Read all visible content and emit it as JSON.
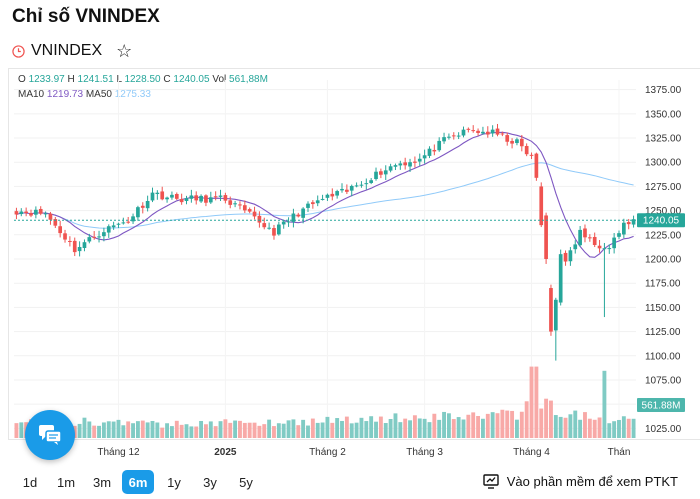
{
  "header": {
    "title": "Chỉ số VNINDEX"
  },
  "symbol": {
    "name": "VNINDEX",
    "clock_icon": "clock-icon",
    "star_icon": "star-icon"
  },
  "legend": {
    "o_label": "O",
    "o_value": "1233.97",
    "h_label": "H",
    "h_value": "1241.51",
    "l_label": "L",
    "l_value": "1228.50",
    "c_label": "C",
    "c_value": "1240.05",
    "vol_label": "Vol",
    "vol_value": "561,88M",
    "ma10_label": "MA10",
    "ma10_value": "1219.73",
    "ma50_label": "MA50",
    "ma50_value": "1275.33"
  },
  "ranges": [
    {
      "label": "1d",
      "active": false
    },
    {
      "label": "1m",
      "active": false
    },
    {
      "label": "3m",
      "active": false
    },
    {
      "label": "6m",
      "active": true
    },
    {
      "label": "1y",
      "active": false
    },
    {
      "label": "3y",
      "active": false
    },
    {
      "label": "5y",
      "active": false
    }
  ],
  "ptkt": {
    "label": "Vào phần mềm để xem PTKT",
    "icon": "chart-window-icon"
  },
  "colors": {
    "up": "#26a69a",
    "down": "#ef5350",
    "ma10": "#7e57c2",
    "ma50": "#90caf9",
    "accent": "#1a9be8"
  },
  "chart_data": {
    "type": "candlestick",
    "y_ticks": [
      1375,
      1350,
      1325,
      1300,
      1275,
      1250,
      1225,
      1200,
      1175,
      1150,
      1125,
      1100,
      1075,
      1050,
      1025
    ],
    "y_tick_labels": [
      "1375.00",
      "1350.00",
      "1325.00",
      "1300.00",
      "1275.00",
      "1250.00",
      "1225.00",
      "1200.00",
      "1175.00",
      "1150.00",
      "1125.00",
      "1100.00",
      "1075.00",
      "1050.00",
      "1025.00"
    ],
    "ylim": [
      1015,
      1385
    ],
    "x_labels": [
      {
        "label": "Tháng 12",
        "index": 21,
        "bold": false
      },
      {
        "label": "2025",
        "index": 43,
        "bold": true
      },
      {
        "label": "Tháng 2",
        "index": 64,
        "bold": false
      },
      {
        "label": "Tháng 3",
        "index": 84,
        "bold": false
      },
      {
        "label": "Tháng 4",
        "index": 106,
        "bold": false
      },
      {
        "label": "Thán",
        "index": 124,
        "bold": false
      }
    ],
    "last_price": "1240.05",
    "last_price_value": 1240.05,
    "last_volume": "561.88M",
    "close_points": [
      [
        0,
        1250
      ],
      [
        6,
        1247
      ],
      [
        12,
        1210
      ],
      [
        18,
        1230
      ],
      [
        23,
        1240
      ],
      [
        28,
        1268
      ],
      [
        33,
        1262
      ],
      [
        38,
        1262
      ],
      [
        43,
        1262
      ],
      [
        48,
        1245
      ],
      [
        53,
        1228
      ],
      [
        58,
        1248
      ],
      [
        63,
        1262
      ],
      [
        68,
        1270
      ],
      [
        73,
        1285
      ],
      [
        78,
        1298
      ],
      [
        83,
        1303
      ],
      [
        88,
        1322
      ],
      [
        93,
        1333
      ],
      [
        98,
        1330
      ],
      [
        103,
        1320
      ],
      [
        106,
        1305
      ],
      [
        108,
        1265
      ],
      [
        110,
        1175
      ],
      [
        111,
        1160
      ],
      [
        113,
        1195
      ],
      [
        116,
        1228
      ],
      [
        119,
        1215
      ],
      [
        122,
        1215
      ],
      [
        125,
        1235
      ],
      [
        127,
        1240
      ]
    ],
    "volume_profile": [
      [
        0,
        0.45
      ],
      [
        15,
        0.4
      ],
      [
        30,
        0.35
      ],
      [
        45,
        0.38
      ],
      [
        60,
        0.42
      ],
      [
        75,
        0.5
      ],
      [
        90,
        0.55
      ],
      [
        103,
        0.6
      ],
      [
        106,
        0.95
      ],
      [
        109,
        0.85
      ],
      [
        112,
        0.7
      ],
      [
        116,
        0.55
      ],
      [
        120,
        0.45
      ],
      [
        127,
        0.45
      ]
    ]
  }
}
